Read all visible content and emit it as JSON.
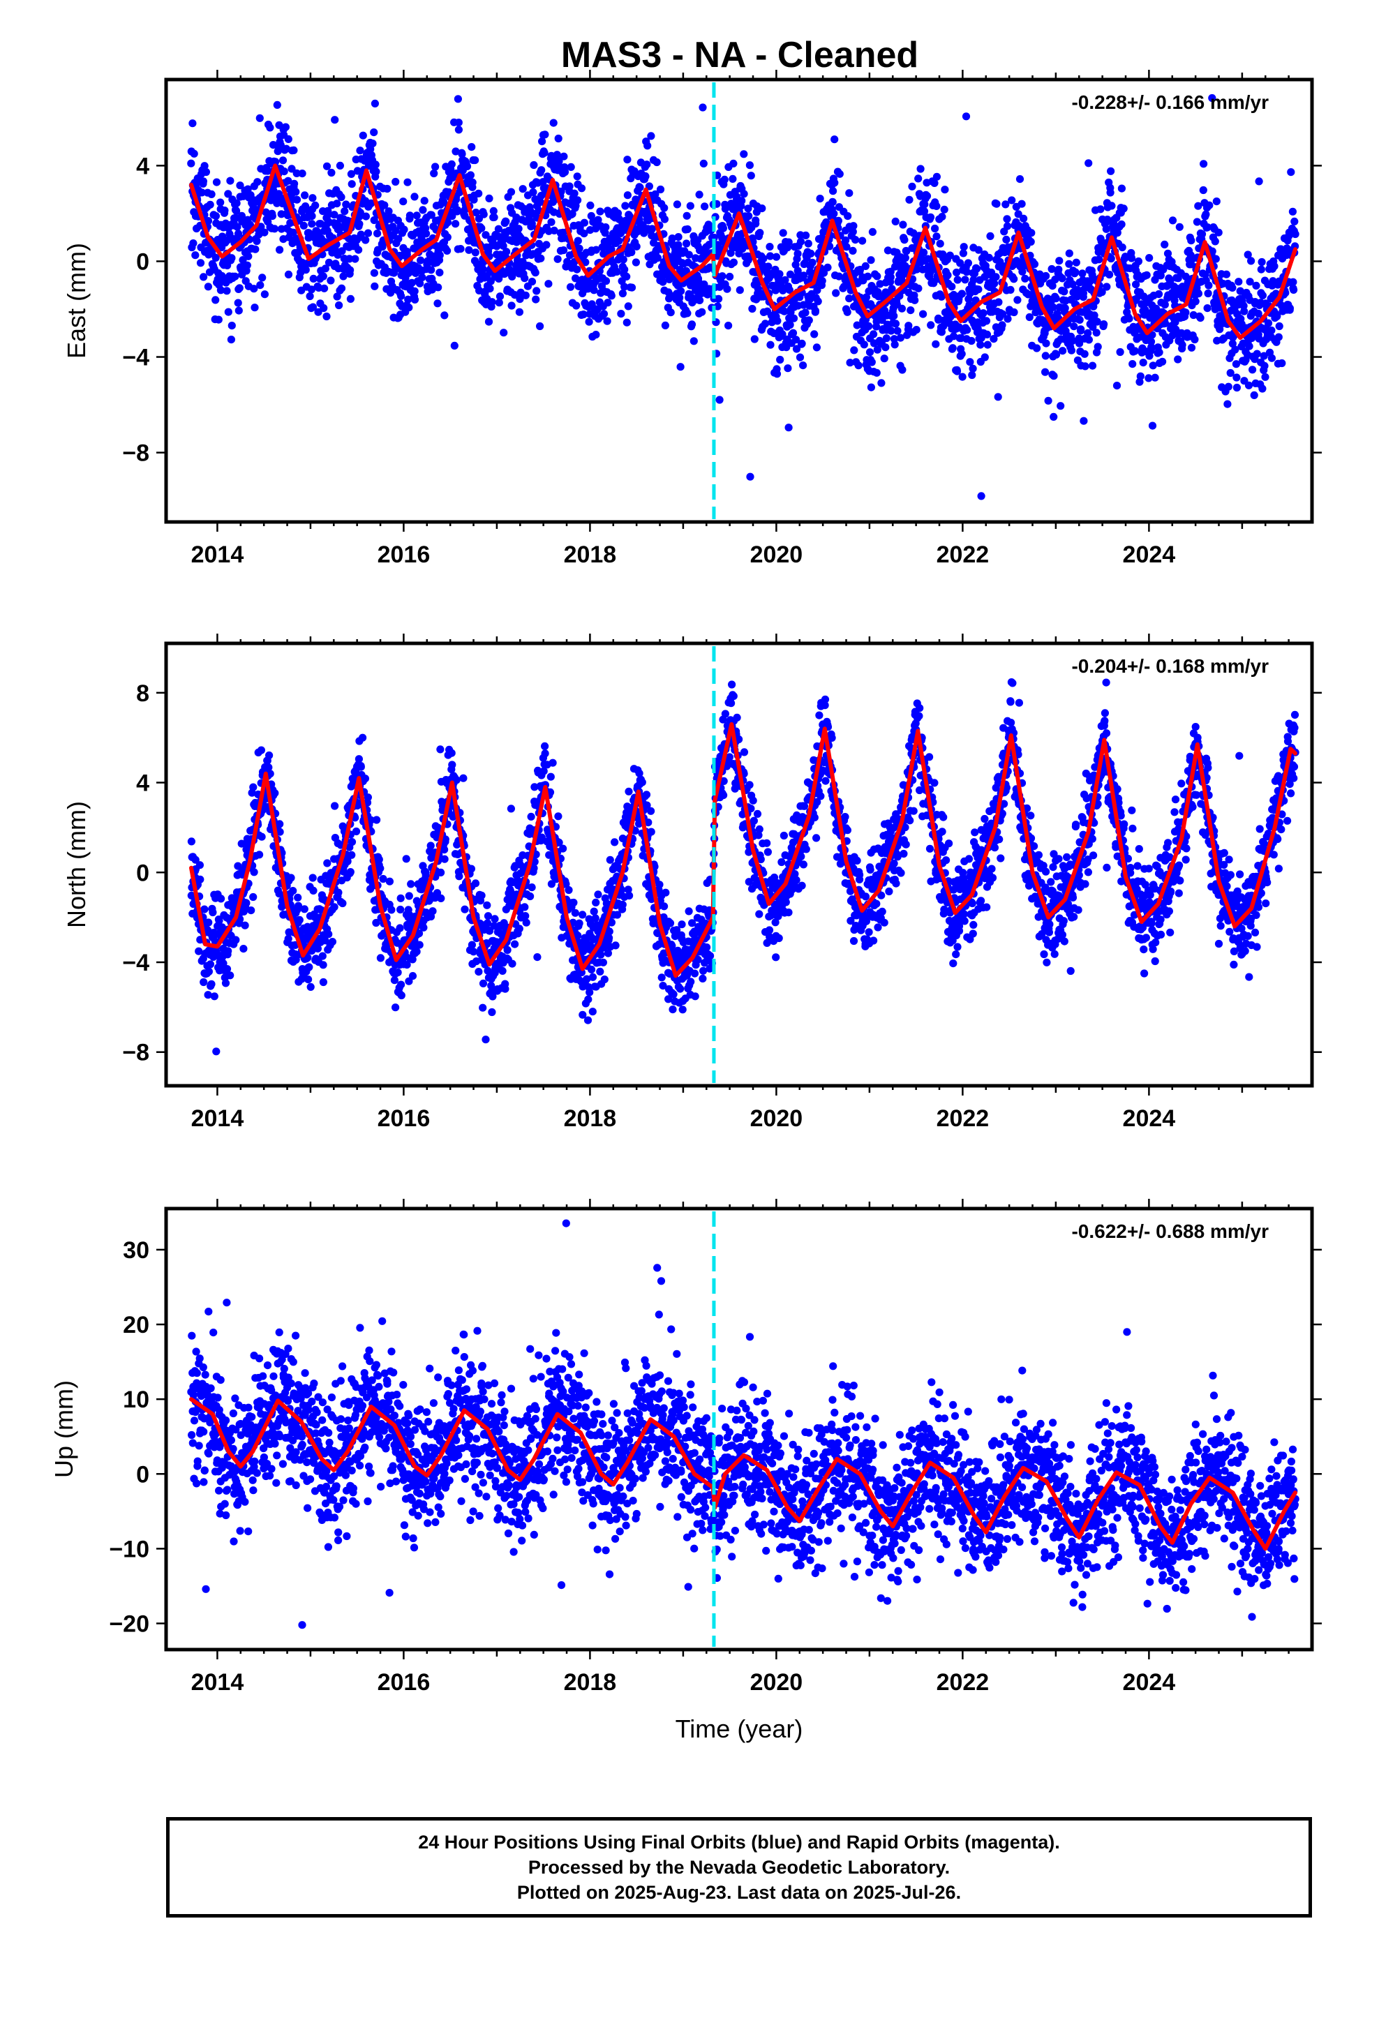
{
  "title": "MAS3  - NA - Cleaned",
  "xlabel": "Time (year)",
  "x_tick_labels": [
    "2014",
    "2016",
    "2018",
    "2020",
    "2022",
    "2024"
  ],
  "notes": [
    "24 Hour Positions Using Final Orbits (blue) and Rapid Orbits (magenta).",
    "Processed by the Nevada Geodetic Laboratory.",
    "Plotted on 2025-Aug-23. Last data on 2025-Jul-26."
  ],
  "colors": {
    "points": "#0000ff",
    "model": "#ff0000",
    "equipment_change": "#00e5ee",
    "frame": "#000000"
  },
  "chart_data": [
    {
      "type": "scatter",
      "component": "east",
      "ylabel": "East (mm)",
      "rate_label": "-0.228+/- 0.166 mm/yr",
      "xlim": [
        2013.45,
        2025.75
      ],
      "ylim": [
        -10.9,
        7.6
      ],
      "yticks": [
        4,
        0,
        -4,
        -8
      ],
      "y_tick_labels": [
        "4",
        "0",
        "−4",
        "−8"
      ],
      "x_range": [
        2013.72,
        2025.57
      ],
      "event_x": 2019.33,
      "series": [
        {
          "label": "model",
          "points": [
            [
              2013.72,
              3.2
            ],
            [
              2013.9,
              1.0
            ],
            [
              2014.05,
              0.2
            ],
            [
              2014.25,
              0.8
            ],
            [
              2014.42,
              1.5
            ],
            [
              2014.62,
              4.0
            ],
            [
              2014.85,
              1.5
            ],
            [
              2014.98,
              0.1
            ],
            [
              2015.2,
              0.7
            ],
            [
              2015.42,
              1.2
            ],
            [
              2015.6,
              3.8
            ],
            [
              2015.85,
              0.5
            ],
            [
              2015.98,
              -0.2
            ],
            [
              2016.2,
              0.5
            ],
            [
              2016.35,
              0.9
            ],
            [
              2016.6,
              3.6
            ],
            [
              2016.85,
              0.3
            ],
            [
              2016.98,
              -0.4
            ],
            [
              2017.2,
              0.3
            ],
            [
              2017.4,
              0.9
            ],
            [
              2017.6,
              3.4
            ],
            [
              2017.85,
              0.2
            ],
            [
              2017.98,
              -0.6
            ],
            [
              2018.2,
              0.2
            ],
            [
              2018.35,
              0.5
            ],
            [
              2018.6,
              3.0
            ],
            [
              2018.85,
              -0.2
            ],
            [
              2018.98,
              -0.8
            ],
            [
              2019.2,
              -0.2
            ],
            [
              2019.32,
              0.3
            ],
            [
              2019.34,
              -0.6
            ],
            [
              2019.6,
              2.0
            ],
            [
              2019.85,
              -0.9
            ],
            [
              2019.98,
              -2.0
            ],
            [
              2020.2,
              -1.3
            ],
            [
              2020.4,
              -0.9
            ],
            [
              2020.6,
              1.7
            ],
            [
              2020.85,
              -1.3
            ],
            [
              2020.98,
              -2.3
            ],
            [
              2021.2,
              -1.6
            ],
            [
              2021.4,
              -0.9
            ],
            [
              2021.6,
              1.4
            ],
            [
              2021.85,
              -1.7
            ],
            [
              2021.98,
              -2.5
            ],
            [
              2022.2,
              -1.7
            ],
            [
              2022.4,
              -1.3
            ],
            [
              2022.6,
              1.2
            ],
            [
              2022.85,
              -1.9
            ],
            [
              2022.98,
              -2.8
            ],
            [
              2023.2,
              -2.0
            ],
            [
              2023.4,
              -1.6
            ],
            [
              2023.6,
              1.0
            ],
            [
              2023.85,
              -2.2
            ],
            [
              2023.98,
              -3.0
            ],
            [
              2024.2,
              -2.2
            ],
            [
              2024.4,
              -1.8
            ],
            [
              2024.6,
              0.8
            ],
            [
              2024.85,
              -2.5
            ],
            [
              2024.98,
              -3.2
            ],
            [
              2025.2,
              -2.5
            ],
            [
              2025.4,
              -1.5
            ],
            [
              2025.57,
              0.5
            ]
          ]
        }
      ],
      "scatter_sd": 1.3
    },
    {
      "type": "scatter",
      "component": "north",
      "ylabel": "North (mm)",
      "rate_label": "-0.204+/- 0.168 mm/yr",
      "xlim": [
        2013.45,
        2025.75
      ],
      "ylim": [
        -9.5,
        10.2
      ],
      "yticks": [
        8,
        4,
        0,
        -4,
        -8
      ],
      "y_tick_labels": [
        "8",
        "4",
        "0",
        "−4",
        "−8"
      ],
      "x_range": [
        2013.72,
        2025.57
      ],
      "event_x": 2019.33,
      "series": [
        {
          "label": "model",
          "points": [
            [
              2013.72,
              0.2
            ],
            [
              2013.87,
              -3.2
            ],
            [
              2014.0,
              -3.3
            ],
            [
              2014.2,
              -2.0
            ],
            [
              2014.35,
              0.5
            ],
            [
              2014.52,
              4.4
            ],
            [
              2014.75,
              -1.5
            ],
            [
              2014.92,
              -3.7
            ],
            [
              2015.1,
              -2.5
            ],
            [
              2015.35,
              0.8
            ],
            [
              2015.52,
              4.2
            ],
            [
              2015.75,
              -1.5
            ],
            [
              2015.92,
              -3.9
            ],
            [
              2016.1,
              -2.8
            ],
            [
              2016.35,
              0.5
            ],
            [
              2016.52,
              4.0
            ],
            [
              2016.75,
              -2.0
            ],
            [
              2016.92,
              -4.1
            ],
            [
              2017.1,
              -3.0
            ],
            [
              2017.35,
              0.3
            ],
            [
              2017.52,
              3.8
            ],
            [
              2017.75,
              -2.0
            ],
            [
              2017.92,
              -4.3
            ],
            [
              2018.1,
              -3.2
            ],
            [
              2018.35,
              0.0
            ],
            [
              2018.52,
              3.6
            ],
            [
              2018.75,
              -2.3
            ],
            [
              2018.92,
              -4.6
            ],
            [
              2019.1,
              -3.8
            ],
            [
              2019.32,
              -2.0
            ],
            [
              2019.34,
              3.2
            ],
            [
              2019.52,
              6.6
            ],
            [
              2019.75,
              1.0
            ],
            [
              2019.92,
              -1.4
            ],
            [
              2020.1,
              -0.5
            ],
            [
              2020.35,
              2.5
            ],
            [
              2020.52,
              6.4
            ],
            [
              2020.75,
              0.5
            ],
            [
              2020.92,
              -1.7
            ],
            [
              2021.1,
              -0.8
            ],
            [
              2021.35,
              2.3
            ],
            [
              2021.52,
              6.3
            ],
            [
              2021.75,
              0.3
            ],
            [
              2021.92,
              -1.8
            ],
            [
              2022.1,
              -1.0
            ],
            [
              2022.35,
              2.0
            ],
            [
              2022.52,
              6.1
            ],
            [
              2022.75,
              0.0
            ],
            [
              2022.92,
              -2.0
            ],
            [
              2023.1,
              -1.2
            ],
            [
              2023.35,
              1.8
            ],
            [
              2023.52,
              5.9
            ],
            [
              2023.75,
              -0.2
            ],
            [
              2023.92,
              -2.2
            ],
            [
              2024.1,
              -1.4
            ],
            [
              2024.35,
              1.5
            ],
            [
              2024.52,
              5.7
            ],
            [
              2024.75,
              -0.4
            ],
            [
              2024.92,
              -2.4
            ],
            [
              2025.1,
              -1.6
            ],
            [
              2025.35,
              2.0
            ],
            [
              2025.52,
              5.5
            ],
            [
              2025.57,
              5.3
            ]
          ]
        }
      ],
      "scatter_sd": 1.0
    },
    {
      "type": "scatter",
      "component": "up",
      "ylabel": "Up (mm)",
      "rate_label": "-0.622+/- 0.688 mm/yr",
      "xlim": [
        2013.45,
        2025.75
      ],
      "ylim": [
        -23.5,
        35.5
      ],
      "yticks": [
        30,
        20,
        10,
        0,
        -10,
        -20
      ],
      "y_tick_labels": [
        "30",
        "20",
        "10",
        "0",
        "−10",
        "−20"
      ],
      "x_range": [
        2013.72,
        2025.57
      ],
      "event_x": 2019.33,
      "series": [
        {
          "label": "model",
          "points": [
            [
              2013.72,
              10.0
            ],
            [
              2013.95,
              8.0
            ],
            [
              2014.12,
              3.0
            ],
            [
              2014.25,
              1.0
            ],
            [
              2014.38,
              3.0
            ],
            [
              2014.65,
              9.8
            ],
            [
              2014.9,
              7.0
            ],
            [
              2015.12,
              2.0
            ],
            [
              2015.25,
              0.5
            ],
            [
              2015.4,
              3.0
            ],
            [
              2015.65,
              9.0
            ],
            [
              2015.9,
              6.5
            ],
            [
              2016.12,
              1.0
            ],
            [
              2016.25,
              -0.2
            ],
            [
              2016.4,
              2.5
            ],
            [
              2016.65,
              8.5
            ],
            [
              2016.9,
              6.0
            ],
            [
              2017.12,
              0.5
            ],
            [
              2017.25,
              -0.8
            ],
            [
              2017.4,
              2.0
            ],
            [
              2017.65,
              8.0
            ],
            [
              2017.9,
              5.5
            ],
            [
              2018.12,
              0.0
            ],
            [
              2018.25,
              -1.4
            ],
            [
              2018.4,
              1.5
            ],
            [
              2018.65,
              7.3
            ],
            [
              2018.9,
              5.0
            ],
            [
              2019.12,
              0.0
            ],
            [
              2019.32,
              -1.8
            ],
            [
              2019.34,
              -4.5
            ],
            [
              2019.45,
              0.0
            ],
            [
              2019.65,
              2.5
            ],
            [
              2019.9,
              0.5
            ],
            [
              2020.12,
              -4.5
            ],
            [
              2020.25,
              -6.3
            ],
            [
              2020.45,
              -2.0
            ],
            [
              2020.65,
              2.0
            ],
            [
              2020.9,
              0.0
            ],
            [
              2021.12,
              -5.0
            ],
            [
              2021.25,
              -7.0
            ],
            [
              2021.45,
              -2.5
            ],
            [
              2021.65,
              1.5
            ],
            [
              2021.9,
              -0.5
            ],
            [
              2022.12,
              -5.5
            ],
            [
              2022.25,
              -7.8
            ],
            [
              2022.45,
              -3.0
            ],
            [
              2022.65,
              0.8
            ],
            [
              2022.9,
              -1.0
            ],
            [
              2023.12,
              -6.0
            ],
            [
              2023.25,
              -8.5
            ],
            [
              2023.45,
              -3.5
            ],
            [
              2023.65,
              0.2
            ],
            [
              2023.9,
              -1.5
            ],
            [
              2024.12,
              -7.0
            ],
            [
              2024.25,
              -9.2
            ],
            [
              2024.45,
              -4.0
            ],
            [
              2024.65,
              -0.5
            ],
            [
              2024.9,
              -2.5
            ],
            [
              2025.12,
              -7.5
            ],
            [
              2025.25,
              -10.0
            ],
            [
              2025.45,
              -5.0
            ],
            [
              2025.57,
              -2.5
            ]
          ]
        }
      ],
      "scatter_sd": 4.5
    }
  ]
}
